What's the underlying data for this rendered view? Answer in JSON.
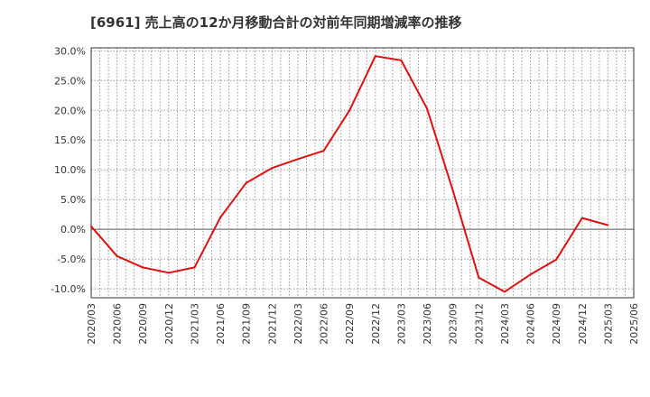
{
  "chart_data": {
    "type": "line",
    "title": "[6961]  売上高の12か月移動合計の対前年同期増減率の推移",
    "xlabel": "",
    "ylabel": "",
    "x_ticks": [
      "2020/03",
      "2020/06",
      "2020/09",
      "2020/12",
      "2021/03",
      "2021/06",
      "2021/09",
      "2021/12",
      "2022/03",
      "2022/06",
      "2022/09",
      "2022/12",
      "2023/03",
      "2023/06",
      "2023/09",
      "2023/12",
      "2024/03",
      "2024/06",
      "2024/09",
      "2024/12",
      "2025/03",
      "2025/06"
    ],
    "y_ticks": [
      "30.0%",
      "25.0%",
      "20.0%",
      "15.0%",
      "10.0%",
      "5.0%",
      "0.0%",
      "-5.0%",
      "-10.0%"
    ],
    "y_tick_values": [
      30,
      25,
      20,
      15,
      10,
      5,
      0,
      -5,
      -10
    ],
    "ylim": [
      -11.5,
      30.5
    ],
    "grid": true,
    "series": [
      {
        "color": "#dd1111",
        "x": [
          "2020/03",
          "2020/06",
          "2020/09",
          "2020/12",
          "2021/03",
          "2021/06",
          "2021/09",
          "2021/12",
          "2022/03",
          "2022/06",
          "2022/09",
          "2022/12",
          "2023/03",
          "2023/06",
          "2023/09",
          "2023/12",
          "2024/03",
          "2024/06",
          "2024/09",
          "2024/12",
          "2025/03"
        ],
        "values": [
          0.5,
          -4.5,
          -6.4,
          -7.3,
          -6.4,
          2.0,
          7.8,
          10.3,
          11.8,
          13.2,
          20.0,
          29.1,
          28.4,
          20.3,
          6.5,
          -8.1,
          -10.5,
          -7.6,
          -5.1,
          1.9,
          0.7
        ]
      }
    ]
  }
}
